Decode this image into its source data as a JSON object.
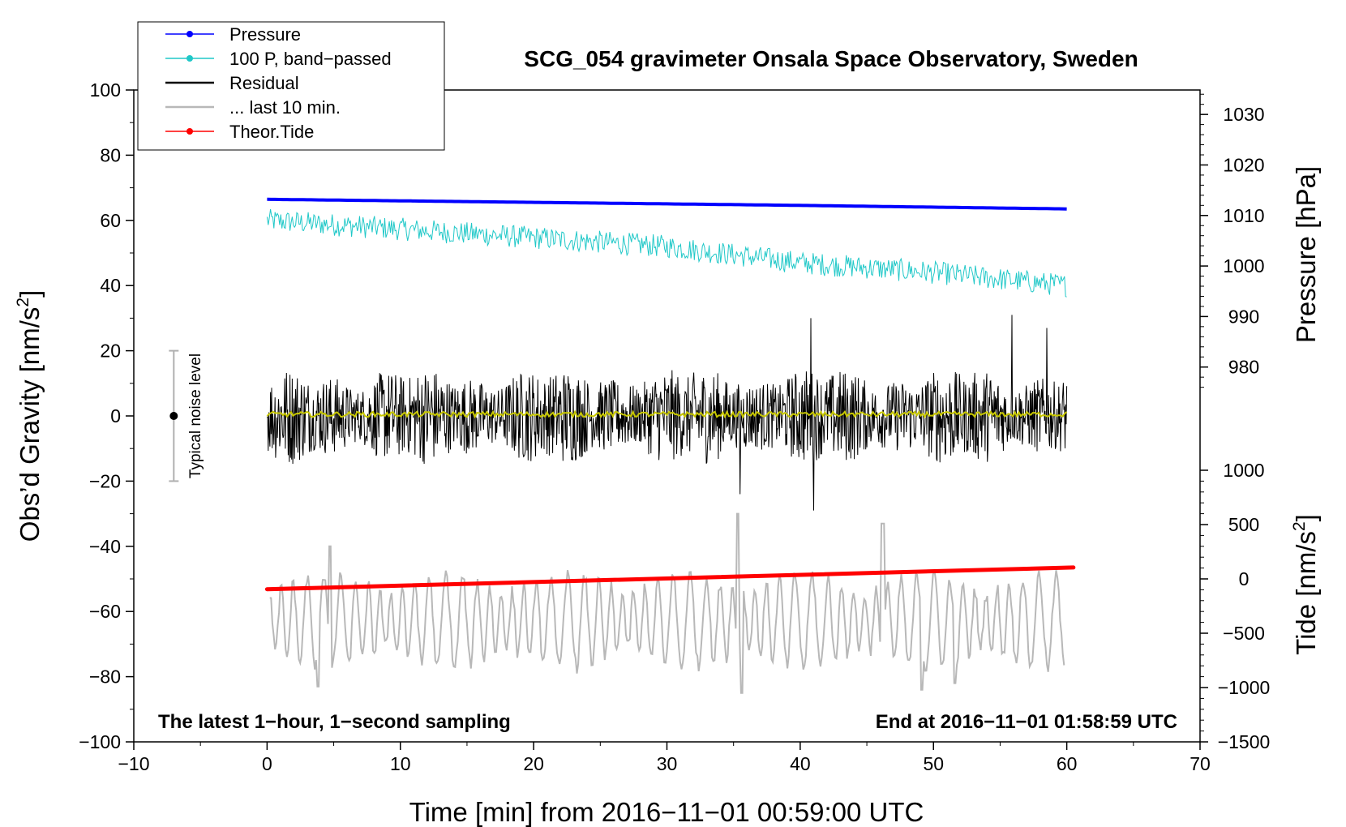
{
  "chart_data": {
    "type": "line",
    "title": "SCG_054 gravimeter Onsala Space Observatory, Sweden",
    "xlabel": "Time [min] from 2016−11−01 00:59:00 UTC",
    "ylabel_left_prefix": "Obs’d Gravity [nm/s",
    "ylabel_left_sup": "2",
    "ylabel_left_suffix": "]",
    "ylabel_right_pressure": "Pressure [hPa]",
    "ylabel_right_tide_prefix": "Tide [nm/s",
    "ylabel_right_tide_sup": "2",
    "ylabel_right_tide_suffix": "]",
    "xlim": [
      -10,
      70
    ],
    "ylim": [
      -100,
      100
    ],
    "x_ticks": [
      -10,
      0,
      10,
      20,
      30,
      40,
      50,
      60,
      70
    ],
    "x_tick_labels": [
      "−10",
      "0",
      "10",
      "20",
      "30",
      "40",
      "50",
      "60",
      "70"
    ],
    "y_ticks": [
      -100,
      -80,
      -60,
      -40,
      -20,
      0,
      20,
      40,
      60,
      80,
      100
    ],
    "y_tick_labels": [
      "−100",
      "−80",
      "−60",
      "−40",
      "−20",
      "0",
      "20",
      "40",
      "60",
      "80",
      "100"
    ],
    "pressure_axis": {
      "gravity_at_980": 15,
      "gravity_per_hpa": 1.55,
      "ticks": [
        980,
        990,
        1000,
        1010,
        1020,
        1030
      ],
      "tick_labels": [
        "980",
        "990",
        "1000",
        "1010",
        "1020",
        "1030"
      ]
    },
    "tide_axis": {
      "gravity_at_0": -50,
      "gravity_per_unit": 0.033333,
      "ticks": [
        -1500,
        -1000,
        -500,
        0,
        500,
        1000
      ],
      "tick_labels": [
        "−1500",
        "−1000",
        "−500",
        "0",
        "500",
        "1000"
      ]
    },
    "legend": {
      "position": "top-left",
      "entries": [
        {
          "label": "Pressure",
          "color": "#0000ff",
          "marker": true
        },
        {
          "label": "100 P, band−passed",
          "color": "#20c8c8",
          "marker": true
        },
        {
          "label": "Residual",
          "color": "#000000",
          "marker": false
        },
        {
          "label": "... last 10 min.",
          "color": "#b8b8b8",
          "marker": false
        },
        {
          "label": "Theor.Tide",
          "color": "#ff0000",
          "marker": true
        }
      ]
    },
    "series": [
      {
        "name": "Pressure",
        "color": "#0000ff",
        "kind": "smooth",
        "x_range": [
          0,
          60
        ],
        "values_at": [
          [
            0,
            1013.2
          ],
          [
            20,
            1012.6
          ],
          [
            40,
            1012.0
          ],
          [
            60,
            1011.3
          ]
        ]
      },
      {
        "name": "100 P, band-passed",
        "color": "#20c8c8",
        "kind": "noisy",
        "x_range": [
          0,
          60
        ],
        "trend": [
          [
            0,
            60
          ],
          [
            15,
            56
          ],
          [
            30,
            52
          ],
          [
            40,
            47
          ],
          [
            50,
            44
          ],
          [
            60,
            40
          ]
        ],
        "amplitude": 3.5
      },
      {
        "name": "Residual",
        "color": "#000000",
        "kind": "noisy",
        "x_range": [
          0,
          60
        ],
        "center": 0,
        "amplitude": 12,
        "extremes": [
          [
            40.8,
            30
          ],
          [
            41.0,
            -29
          ],
          [
            55.9,
            31
          ],
          [
            58.5,
            27
          ],
          [
            35.5,
            -24
          ]
        ]
      },
      {
        "name": "Residual smoothed",
        "color": "#c8c800",
        "kind": "noisy",
        "x_range": [
          0,
          60
        ],
        "center": 0.5,
        "amplitude": 0.8
      },
      {
        "name": "... last 10 min.",
        "color": "#b8b8b8",
        "kind": "oscillating",
        "x_range": [
          0.2,
          59.8
        ],
        "center": -63,
        "amplitude": 8,
        "extremes": [
          [
            3.8,
            -83
          ],
          [
            4.7,
            -40
          ],
          [
            35.3,
            -30
          ],
          [
            35.6,
            -85
          ],
          [
            46.2,
            -33
          ],
          [
            49.1,
            -84
          ],
          [
            51.6,
            -82
          ]
        ]
      },
      {
        "name": "Theor.Tide",
        "color": "#ff0000",
        "kind": "line",
        "x_range": [
          0,
          60.5
        ],
        "tide_values": [
          [
            0,
            -95
          ],
          [
            60.5,
            105
          ]
        ]
      }
    ],
    "noise_bar": {
      "label": "Typical noise level",
      "x": -7,
      "y_center": 0,
      "y_low": -20,
      "y_high": 20
    },
    "annotations": {
      "bottom_left": "The latest 1−hour, 1−second sampling",
      "bottom_right": "End at 2016−11−01 01:58:59 UTC"
    }
  }
}
